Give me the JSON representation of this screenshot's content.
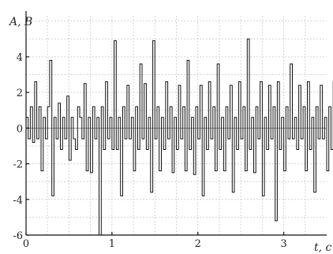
{
  "chart_data": {
    "type": "line",
    "title": "",
    "xlabel": "t, c",
    "ylabel": "A, В",
    "xlim": [
      0,
      3.5
    ],
    "ylim": [
      -6,
      6.3
    ],
    "grid": true,
    "x_ticks": [
      {
        "value": 0,
        "label": "0"
      },
      {
        "value": 1,
        "label": "1"
      },
      {
        "value": 2,
        "label": "2"
      },
      {
        "value": 3,
        "label": "3"
      }
    ],
    "y_ticks": [
      {
        "value": -6,
        "label": "-6"
      },
      {
        "value": -4,
        "label": "-4"
      },
      {
        "value": -2,
        "label": "-2"
      },
      {
        "value": 0,
        "label": "0"
      },
      {
        "value": 2,
        "label": "2"
      },
      {
        "value": 4,
        "label": "4"
      }
    ],
    "series": [
      {
        "sample_step": 0.025,
        "y": [
          0.6,
          -0.6,
          1.2,
          -0.8,
          2.6,
          -0.6,
          1.2,
          -2.4,
          0.6,
          -0.6,
          1.2,
          3.8,
          -3.8,
          0.6,
          -0.6,
          1.4,
          -1.2,
          0.6,
          -0.6,
          1.8,
          -1.8,
          0.6,
          -0.6,
          -1.2,
          1.2,
          0.6,
          -0.6,
          2.5,
          -2.4,
          0.6,
          -2.5,
          1.2,
          -0.6,
          0.6,
          -6.0,
          1.2,
          -1.2,
          2.6,
          -0.6,
          0.6,
          -1.2,
          4.9,
          -1.2,
          0.6,
          -3.8,
          1.2,
          -0.6,
          2.4,
          -0.6,
          0.6,
          -2.4,
          1.2,
          -1.2,
          3.6,
          -0.6,
          2.5,
          -1.2,
          0.6,
          -3.6,
          4.9,
          -0.6,
          1.2,
          -2.4,
          0.6,
          -1.2,
          2.6,
          -0.6,
          1.2,
          -2.5,
          0.6,
          -1.2,
          2.4,
          -0.6,
          1.2,
          -2.4,
          3.8,
          -1.2,
          0.6,
          -2.6,
          1.2,
          -0.6,
          2.4,
          -3.8,
          0.6,
          -1.2,
          2.6,
          -0.6,
          1.2,
          -2.4,
          3.6,
          -1.2,
          0.6,
          -2.4,
          1.2,
          -0.6,
          2.4,
          -3.6,
          0.6,
          -1.2,
          2.6,
          -0.6,
          1.2,
          -2.4,
          5.0,
          -1.2,
          0.6,
          -2.5,
          1.2,
          -0.6,
          2.6,
          -3.8,
          0.6,
          -1.2,
          2.4,
          -0.6,
          1.2,
          -5.2,
          2.6,
          -1.2,
          0.6,
          -2.4,
          1.2,
          -0.6,
          3.6,
          -0.6,
          0.6,
          -1.2,
          2.4,
          -0.6,
          1.2,
          -2.4,
          2.6,
          -1.2,
          0.6,
          -3.6,
          1.2,
          -0.6,
          2.4,
          -0.6,
          0.6,
          -2.4,
          1.2,
          -1.2,
          2.6,
          -0.6,
          1.2,
          -2.4,
          0.6,
          -1.2,
          2.4,
          -0.6,
          1.2,
          -2.5,
          0.6
        ]
      }
    ]
  }
}
